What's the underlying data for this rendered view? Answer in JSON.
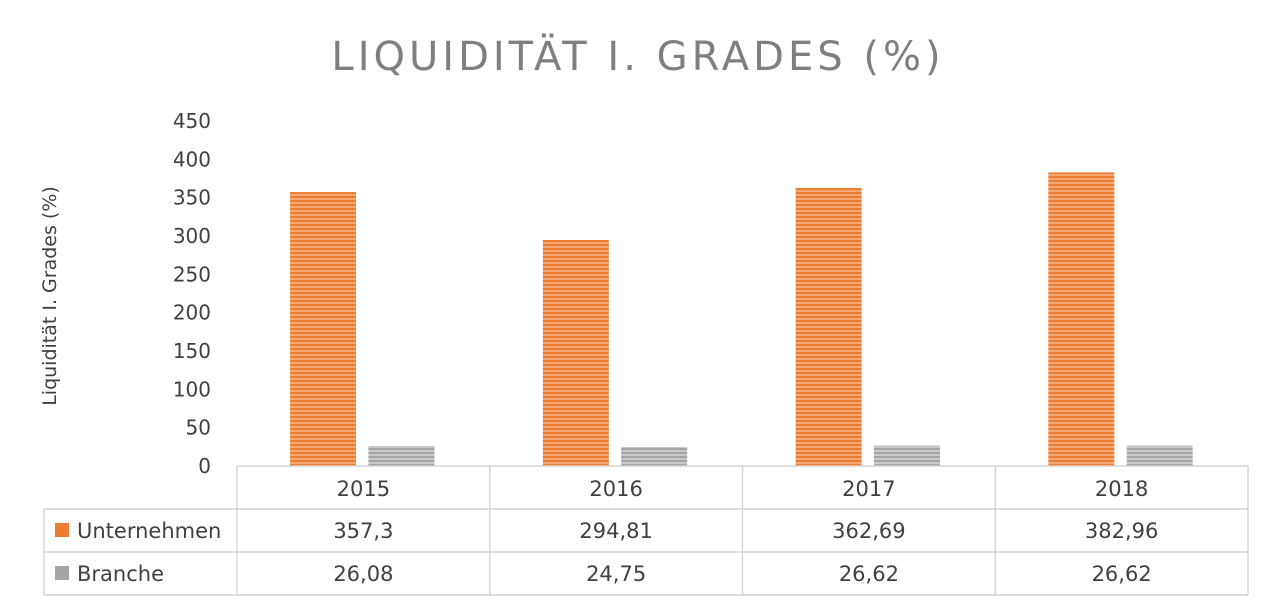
{
  "chart_data": {
    "type": "bar",
    "title": "LIQUIDITÄT I. GRADES (%)",
    "xlabel": "",
    "ylabel": "Liquidität I. Grades (%)",
    "categories": [
      "2015",
      "2016",
      "2017",
      "2018"
    ],
    "series": [
      {
        "name": "Unternehmen",
        "values": [
          357.3,
          294.81,
          362.69,
          382.96
        ],
        "labels": [
          "357,3",
          "294,81",
          "362,69",
          "382,96"
        ],
        "color": "#ed7d31"
      },
      {
        "name": "Branche",
        "values": [
          26.08,
          24.75,
          26.62,
          26.62
        ],
        "labels": [
          "26,08",
          "24,75",
          "26,62",
          "26,62"
        ],
        "color": "#a5a5a5"
      }
    ],
    "ylim": [
      0,
      450
    ],
    "yticks": [
      0,
      50,
      100,
      150,
      200,
      250,
      300,
      350,
      400,
      450
    ],
    "grid": false,
    "legend": "data-table"
  }
}
